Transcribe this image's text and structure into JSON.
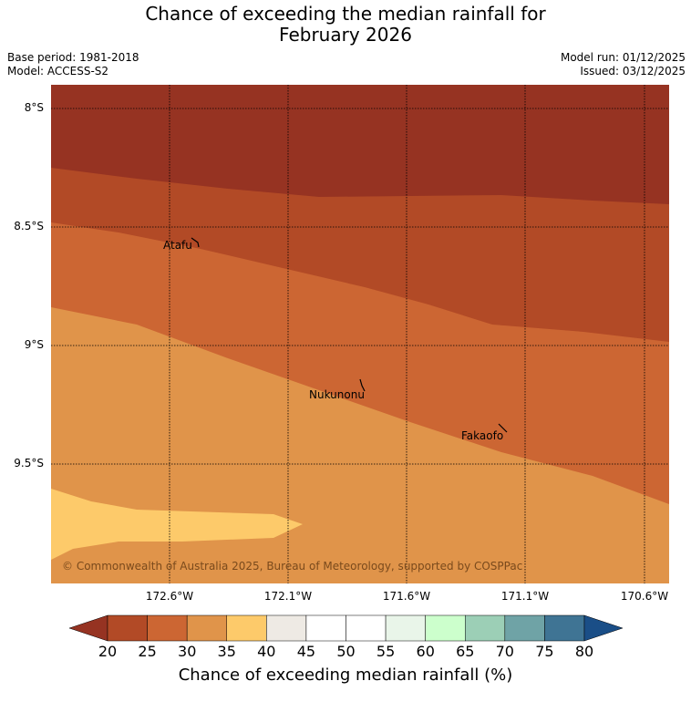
{
  "title_line1": "Chance of exceeding the median rainfall for",
  "title_line2": "February 2026",
  "meta_left": [
    "Base period: 1981-2018",
    "Model: ACCESS-S2"
  ],
  "meta_right": [
    "Model run: 01/12/2025",
    "Issued: 03/12/2025"
  ],
  "lat_labels": [
    "8°S",
    "8.5°S",
    "9°S",
    "9.5°S"
  ],
  "lon_labels": [
    "172.6°W",
    "172.1°W",
    "171.6°W",
    "171.1°W",
    "170.6°W"
  ],
  "places": [
    "Atafu",
    "Nukunonu",
    "Fakaofo"
  ],
  "copyright": "© Commonwealth of Australia 2025, Bureau of Meteorology, supported by COSPPac",
  "colorbar": {
    "ticks": [
      "20",
      "25",
      "30",
      "35",
      "40",
      "45",
      "50",
      "55",
      "60",
      "65",
      "70",
      "75",
      "80"
    ],
    "colors": [
      "#b24a26",
      "#cc6633",
      "#e0944a",
      "#fdca6a",
      "#eeeae4",
      "#ffffff",
      "#ffffff",
      "#e9f5e9",
      "#ccffcc",
      "#9ccfb6",
      "#6fa3a6",
      "#3f7494"
    ],
    "under_color": "#963322",
    "over_color": "#1a4e87",
    "label": "Chance of exceeding median rainfall (%)"
  },
  "map_colors": {
    "lt20": "#963322",
    "c20_25": "#b24a26",
    "c25_30": "#cc6633",
    "c30_35": "#e0944a",
    "c35_40": "#fdca6a"
  }
}
